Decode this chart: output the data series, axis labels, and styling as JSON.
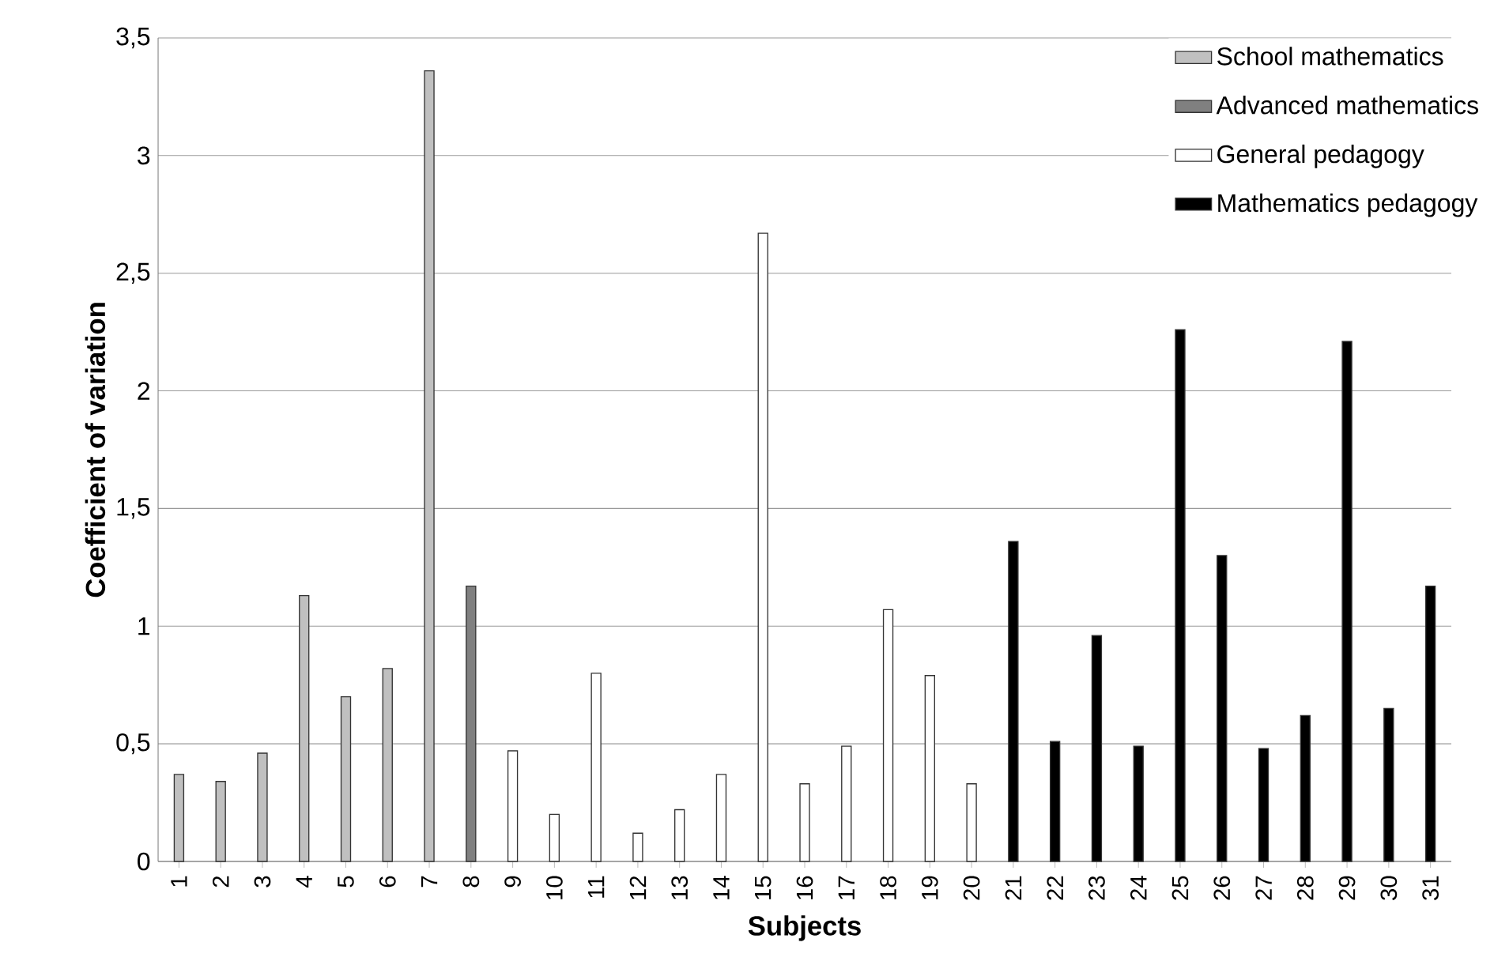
{
  "chart_data": {
    "type": "bar",
    "xlabel": "Subjects",
    "ylabel": "Coefficient of variation",
    "categories": [
      "1",
      "2",
      "3",
      "4",
      "5",
      "6",
      "7",
      "8",
      "9",
      "10",
      "11",
      "12",
      "13",
      "14",
      "15",
      "16",
      "17",
      "18",
      "19",
      "20",
      "21",
      "22",
      "23",
      "24",
      "25",
      "26",
      "27",
      "28",
      "29",
      "30",
      "31"
    ],
    "series": [
      {
        "name": "School mathematics",
        "color": "#c0c0c0",
        "values": [
          0.37,
          0.34,
          0.46,
          1.13,
          0.7,
          0.82,
          3.36,
          null,
          null,
          null,
          null,
          null,
          null,
          null,
          null,
          null,
          null,
          null,
          null,
          null,
          null,
          null,
          null,
          null,
          null,
          null,
          null,
          null,
          null,
          null,
          null
        ]
      },
      {
        "name": "Advanced mathematics",
        "color": "#808080",
        "values": [
          null,
          null,
          null,
          null,
          null,
          null,
          null,
          1.17,
          null,
          null,
          null,
          null,
          null,
          null,
          null,
          null,
          null,
          null,
          null,
          null,
          null,
          null,
          null,
          null,
          null,
          null,
          null,
          null,
          null,
          null,
          null
        ]
      },
      {
        "name": "General pedagogy",
        "color": "#ffffff",
        "values": [
          null,
          null,
          null,
          null,
          null,
          null,
          null,
          null,
          0.47,
          0.2,
          0.8,
          0.12,
          0.22,
          0.37,
          2.67,
          0.33,
          0.49,
          1.07,
          0.79,
          0.33,
          null,
          null,
          null,
          null,
          null,
          null,
          null,
          null,
          null,
          null,
          null
        ]
      },
      {
        "name": "Mathematics pedagogy",
        "color": "#000000",
        "values": [
          null,
          null,
          null,
          null,
          null,
          null,
          null,
          null,
          null,
          null,
          null,
          null,
          null,
          null,
          null,
          null,
          null,
          null,
          null,
          null,
          1.36,
          0.51,
          0.96,
          0.49,
          2.26,
          1.3,
          0.48,
          0.62,
          2.21,
          0.65,
          1.17
        ]
      }
    ],
    "ylim": [
      0,
      3.5
    ],
    "yticks": [
      0,
      {
        "value": 0.5,
        "label": "0,5"
      },
      1,
      {
        "value": 1.5,
        "label": "1,5"
      },
      2,
      {
        "value": 2.5,
        "label": "2,5"
      },
      3,
      {
        "value": 3.5,
        "label": "3,5"
      }
    ],
    "grid": "y",
    "legend": "top right"
  }
}
